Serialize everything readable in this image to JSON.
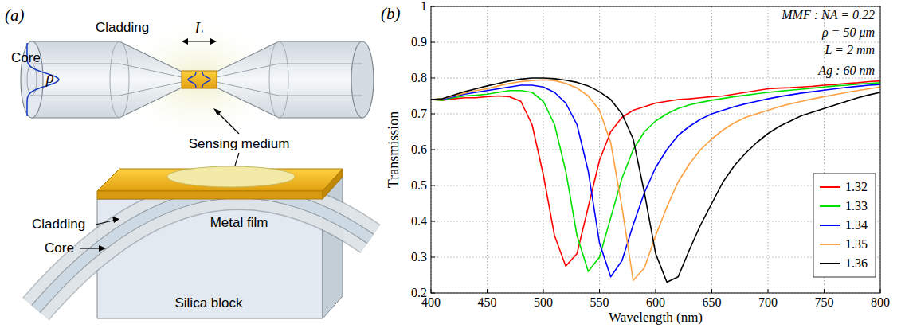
{
  "panel_labels": [
    "(a)",
    "(b)"
  ],
  "diagram": {
    "labels": [
      "Cladding",
      "Core",
      "ρ",
      "L",
      "Sensing medium",
      "Cladding",
      "Core",
      "Metal film",
      "Silica block"
    ]
  },
  "chart_data": {
    "type": "line",
    "x_label": "Wavelength (nm)",
    "y_label": "Transmission",
    "annotations": [
      "MMF : NA = 0.22",
      "ρ = 50 μm",
      "L = 2 mm",
      "Ag : 60 nm"
    ],
    "xlim": [
      400,
      800
    ],
    "ylim": [
      0.2,
      1
    ],
    "xticks": [
      400,
      450,
      500,
      550,
      600,
      650,
      700,
      750,
      800
    ],
    "yticks": [
      0.2,
      0.3,
      0.4,
      0.5,
      0.6,
      0.7,
      0.8,
      0.9,
      1
    ],
    "grid": true,
    "legend": "lower right",
    "x": [
      400,
      410,
      420,
      430,
      440,
      450,
      460,
      470,
      480,
      490,
      500,
      510,
      520,
      530,
      540,
      550,
      560,
      570,
      580,
      590,
      600,
      610,
      620,
      630,
      640,
      650,
      660,
      670,
      680,
      690,
      700,
      710,
      720,
      730,
      740,
      750,
      760,
      770,
      780,
      790,
      800
    ],
    "series": [
      {
        "name": "1.32",
        "color": "#ff0000",
        "values": [
          0.74,
          0.738,
          0.742,
          0.745,
          0.745,
          0.748,
          0.75,
          0.748,
          0.735,
          0.67,
          0.53,
          0.36,
          0.275,
          0.31,
          0.44,
          0.57,
          0.65,
          0.69,
          0.71,
          0.72,
          0.73,
          0.735,
          0.74,
          0.742,
          0.745,
          0.748,
          0.75,
          0.755,
          0.76,
          0.765,
          0.77,
          0.772,
          0.773,
          0.775,
          0.777,
          0.78,
          0.782,
          0.785,
          0.787,
          0.79,
          0.792
        ]
      },
      {
        "name": "1.33",
        "color": "#00e000",
        "values": [
          0.74,
          0.738,
          0.745,
          0.75,
          0.752,
          0.755,
          0.76,
          0.765,
          0.765,
          0.76,
          0.735,
          0.67,
          0.54,
          0.36,
          0.26,
          0.3,
          0.41,
          0.52,
          0.6,
          0.65,
          0.68,
          0.7,
          0.715,
          0.725,
          0.732,
          0.738,
          0.743,
          0.748,
          0.752,
          0.756,
          0.76,
          0.763,
          0.766,
          0.769,
          0.772,
          0.775,
          0.778,
          0.78,
          0.783,
          0.785,
          0.787
        ]
      },
      {
        "name": "1.34",
        "color": "#0000ff",
        "values": [
          0.74,
          0.74,
          0.748,
          0.755,
          0.76,
          0.765,
          0.77,
          0.775,
          0.78,
          0.78,
          0.775,
          0.76,
          0.73,
          0.67,
          0.54,
          0.34,
          0.245,
          0.29,
          0.39,
          0.48,
          0.55,
          0.6,
          0.64,
          0.665,
          0.685,
          0.7,
          0.71,
          0.72,
          0.728,
          0.735,
          0.742,
          0.748,
          0.753,
          0.758,
          0.762,
          0.766,
          0.77,
          0.774,
          0.777,
          0.78,
          0.782
        ]
      },
      {
        "name": "1.35",
        "color": "#ffa040",
        "values": [
          0.74,
          0.742,
          0.75,
          0.758,
          0.765,
          0.77,
          0.778,
          0.785,
          0.79,
          0.793,
          0.795,
          0.793,
          0.785,
          0.772,
          0.75,
          0.71,
          0.62,
          0.44,
          0.235,
          0.27,
          0.36,
          0.44,
          0.51,
          0.56,
          0.6,
          0.63,
          0.655,
          0.675,
          0.69,
          0.7,
          0.71,
          0.72,
          0.728,
          0.735,
          0.742,
          0.748,
          0.754,
          0.76,
          0.765,
          0.77,
          0.775
        ]
      },
      {
        "name": "1.36",
        "color": "#000000",
        "values": [
          0.74,
          0.742,
          0.752,
          0.762,
          0.77,
          0.778,
          0.785,
          0.792,
          0.797,
          0.8,
          0.8,
          0.798,
          0.794,
          0.788,
          0.778,
          0.762,
          0.74,
          0.7,
          0.63,
          0.48,
          0.31,
          0.23,
          0.245,
          0.32,
          0.39,
          0.45,
          0.51,
          0.555,
          0.59,
          0.62,
          0.645,
          0.665,
          0.68,
          0.695,
          0.705,
          0.715,
          0.725,
          0.735,
          0.745,
          0.753,
          0.76
        ]
      }
    ]
  }
}
